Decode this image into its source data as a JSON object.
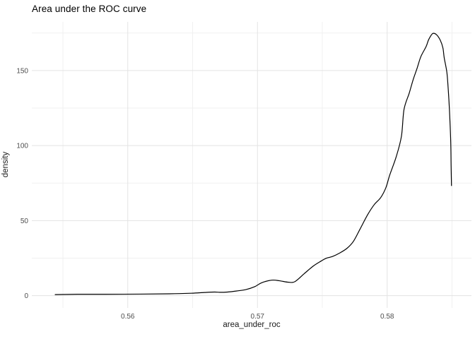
{
  "chart_data": {
    "type": "line",
    "subtype": "kernel-density-curve",
    "title": "Area under the ROC curve",
    "xlabel": "area_under_roc",
    "ylabel": "density",
    "legend": "none",
    "grid": "major+minor",
    "background": "#ffffff",
    "line_color": "#000000",
    "line_width": 1.2,
    "grid_major_color": "#e3e3e3",
    "grid_minor_color": "#f0f0f0",
    "tick_label_color": "#4d4d4d",
    "title_color": "#000000",
    "axis_title_color": "#1a1a1a",
    "xlim": [
      0.5526,
      0.5865
    ],
    "ylim": [
      -8.2,
      182.4
    ],
    "x_tick_values": [
      0.56,
      0.57,
      0.58
    ],
    "x_tick_labels": [
      "0.56",
      "0.57",
      "0.58"
    ],
    "x_minor_ticks": [
      0.555,
      0.565,
      0.575,
      0.585
    ],
    "y_tick_values": [
      0,
      50,
      100,
      150
    ],
    "y_tick_labels": [
      "0",
      "50",
      "100",
      "150"
    ],
    "y_minor_ticks": [
      25,
      75,
      125,
      175
    ],
    "points": [
      [
        0.5544,
        0.7
      ],
      [
        0.5561,
        0.9
      ],
      [
        0.5583,
        0.9
      ],
      [
        0.561,
        1.0
      ],
      [
        0.5632,
        1.2
      ],
      [
        0.5649,
        1.6
      ],
      [
        0.5659,
        2.1
      ],
      [
        0.5667,
        2.4
      ],
      [
        0.5671,
        2.2
      ],
      [
        0.5677,
        2.4
      ],
      [
        0.5684,
        3.1
      ],
      [
        0.5691,
        4.0
      ],
      [
        0.5698,
        6.0
      ],
      [
        0.5703,
        8.5
      ],
      [
        0.5711,
        10.3
      ],
      [
        0.5717,
        9.9
      ],
      [
        0.5724,
        8.9
      ],
      [
        0.5729,
        9.4
      ],
      [
        0.5736,
        14.6
      ],
      [
        0.5743,
        19.7
      ],
      [
        0.5749,
        23.0
      ],
      [
        0.5753,
        24.9
      ],
      [
        0.5758,
        26.1
      ],
      [
        0.5763,
        28.2
      ],
      [
        0.5769,
        31.5
      ],
      [
        0.5774,
        36.2
      ],
      [
        0.5779,
        44.2
      ],
      [
        0.5785,
        54.0
      ],
      [
        0.579,
        60.6
      ],
      [
        0.5795,
        65.3
      ],
      [
        0.5799,
        71.9
      ],
      [
        0.5802,
        80.4
      ],
      [
        0.5807,
        92.6
      ],
      [
        0.5811,
        106.2
      ],
      [
        0.5813,
        124.1
      ],
      [
        0.5817,
        134.9
      ],
      [
        0.582,
        143.8
      ],
      [
        0.5823,
        151.3
      ],
      [
        0.5826,
        159.3
      ],
      [
        0.583,
        165.9
      ],
      [
        0.5832,
        170.6
      ],
      [
        0.5835,
        174.6
      ],
      [
        0.5838,
        173.9
      ],
      [
        0.5841,
        170.1
      ],
      [
        0.5843,
        165.0
      ],
      [
        0.5844,
        158.4
      ],
      [
        0.5846,
        149.0
      ],
      [
        0.5847,
        138.6
      ],
      [
        0.5848,
        124.1
      ],
      [
        0.5849,
        102.9
      ],
      [
        0.58493,
        86.5
      ],
      [
        0.58496,
        73.3
      ]
    ]
  }
}
